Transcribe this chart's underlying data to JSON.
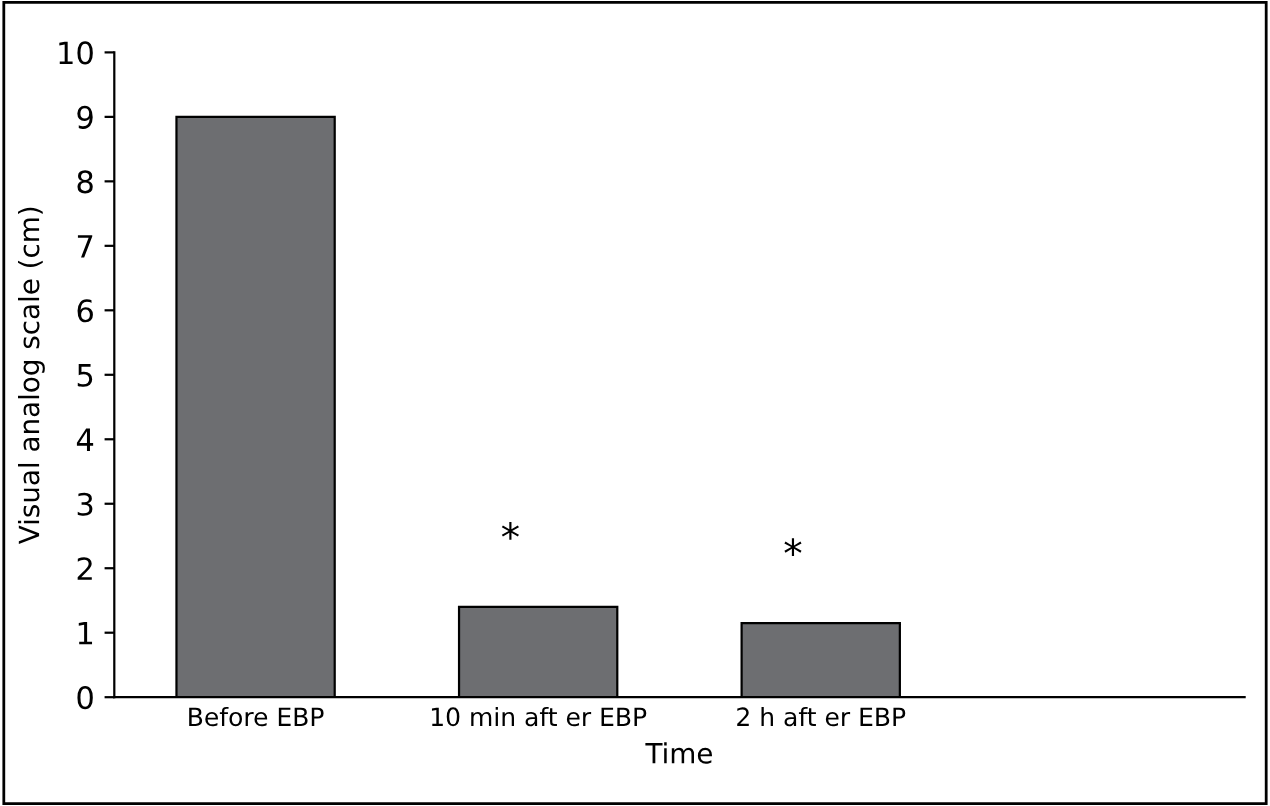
{
  "chart_data": {
    "type": "bar",
    "xlabel": "Time",
    "ylabel": "Visual analog scale (cm)",
    "categories": [
      "Before EBP",
      "10 min aft er EBP",
      "2 h aft er EBP",
      null
    ],
    "values": [
      9.0,
      1.4,
      1.15,
      null
    ],
    "color": "#6d6e71",
    "ylim": [
      0,
      10
    ],
    "yticks": [
      0,
      1,
      2,
      3,
      4,
      5,
      6,
      7,
      8,
      9,
      10
    ],
    "grid": false,
    "legend": false,
    "annotations": [
      "*",
      "*"
    ]
  }
}
